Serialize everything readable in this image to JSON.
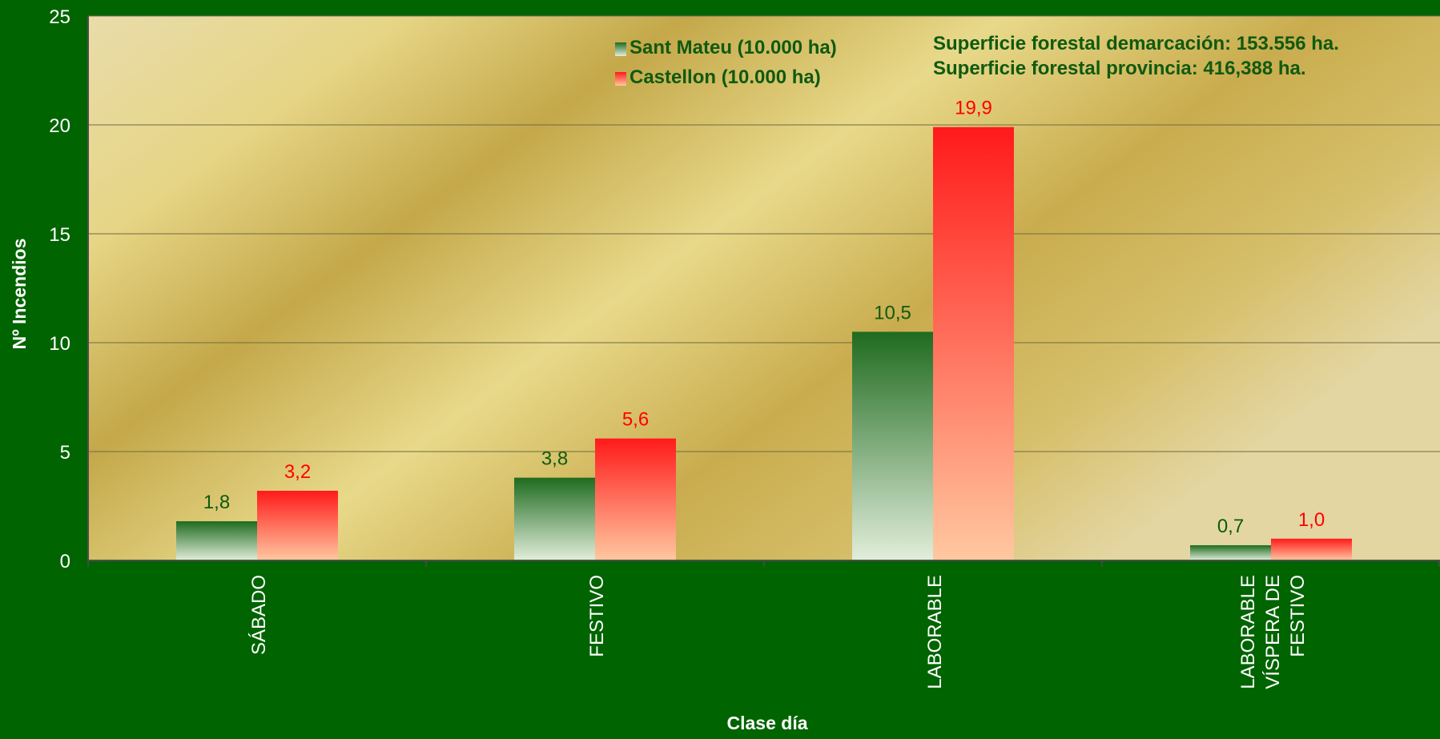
{
  "chart_data": {
    "type": "bar",
    "categories": [
      [
        "SÁBADO"
      ],
      [
        "FESTIVO"
      ],
      [
        "LABORABLE"
      ],
      [
        "LABORABLE",
        "VÍSPERA DE",
        "FESTIVO"
      ]
    ],
    "series": [
      {
        "name": "Sant Mateu (10.000 ha)",
        "values": [
          1.8,
          3.8,
          10.5,
          0.7
        ],
        "value_labels": [
          "1,8",
          "3,8",
          "10,5",
          "0,7"
        ],
        "color": "#1f6b1f",
        "color_light": "#e2eedb",
        "label_color": "#0f5a0f"
      },
      {
        "name": "Castellon (10.000 ha)",
        "values": [
          3.2,
          5.6,
          19.9,
          1.0
        ],
        "value_labels": [
          "3,2",
          "5,6",
          "19,9",
          "1,0"
        ],
        "color": "#ff1a1a",
        "color_light": "#ffc8a0",
        "label_color": "#ff0000"
      }
    ],
    "xlabel": "Clase día",
    "ylabel": "Nº Incendios",
    "ylim": [
      0,
      25
    ],
    "yticks": [
      0,
      5,
      10,
      15,
      20,
      25
    ],
    "grid": true,
    "legend_position": "top-center",
    "annotations": [
      "Superficie forestal demarcación: 153.556 ha.",
      "Superficie forestal provincia: 416,388 ha."
    ],
    "colors": {
      "background": "#006400",
      "plot_gold": "#c9ac4e",
      "plot_light": "#e8d98a",
      "text_white": "#ffffff",
      "text_green": "#0f5a0f"
    }
  }
}
